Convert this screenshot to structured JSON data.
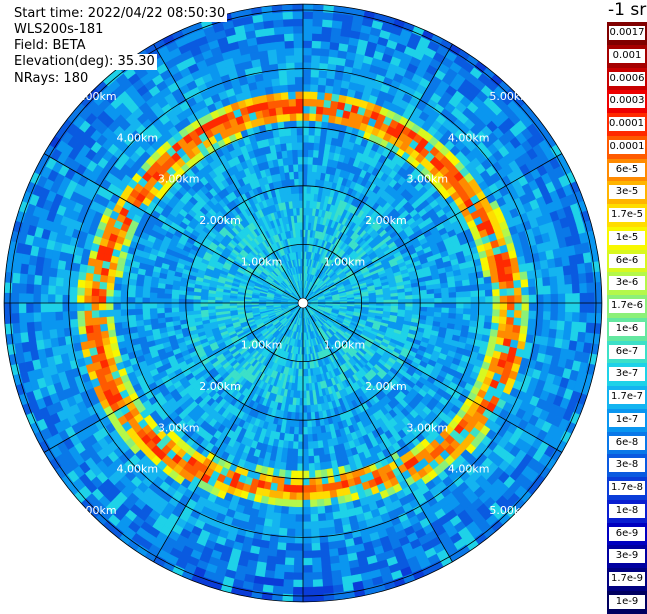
{
  "header": {
    "start_time": "Start time: 2022/04/22 08:50:30",
    "instrument": "WLS200s-181",
    "field": "Field: BETA",
    "elevation": "Elevation(deg): 35.30",
    "nrays": "NRays: 180"
  },
  "ring_labels": [
    "1.00km",
    "2.00km",
    "3.00km",
    "4.00km",
    "5.00km"
  ],
  "colorbar": {
    "title": "-1 sr",
    "labels": [
      "0.0017",
      "0.001",
      "0.0006",
      "0.0003",
      "0.00017",
      "0.0001",
      "6e-5",
      "3e-5",
      "1.7e-5",
      "1e-5",
      "6e-6",
      "3e-6",
      "1.7e-6",
      "1e-6",
      "6e-7",
      "3e-7",
      "1.7e-7",
      "1e-7",
      "6e-8",
      "3e-8",
      "1.7e-8",
      "1e-8",
      "6e-9",
      "3e-9",
      "1.7e-9",
      "1e-9"
    ],
    "colors": [
      "#800000",
      "#a50000",
      "#c80000",
      "#ee0000",
      "#ff2a00",
      "#ff5a00",
      "#ff8a00",
      "#ffb400",
      "#ffdc00",
      "#f8f800",
      "#d8f820",
      "#b4f84a",
      "#8cf078",
      "#64e8a0",
      "#3ce0c8",
      "#1ed2e8",
      "#14b4f0",
      "#0a96f0",
      "#0a78e8",
      "#0a5ae0",
      "#0a3cd8",
      "#0a1ed0",
      "#0000c0",
      "#0000a0",
      "#000080",
      "#000060"
    ]
  },
  "chart_data": {
    "type": "heatmap",
    "projection": "polar",
    "field": "BETA",
    "units": "sr-1",
    "elevation_deg": 35.3,
    "n_rays": 180,
    "range_rings_km": [
      1,
      2,
      3,
      4,
      5
    ],
    "max_range_km": 5.1,
    "spokes_deg": [
      0,
      30,
      60,
      90,
      120,
      150,
      180,
      210,
      240,
      270,
      300,
      330
    ],
    "aerosol_ring_km": [
      3.1,
      3.7
    ],
    "aerosol_ring_value": 0.00017,
    "background_value": 1.7e-07
  }
}
